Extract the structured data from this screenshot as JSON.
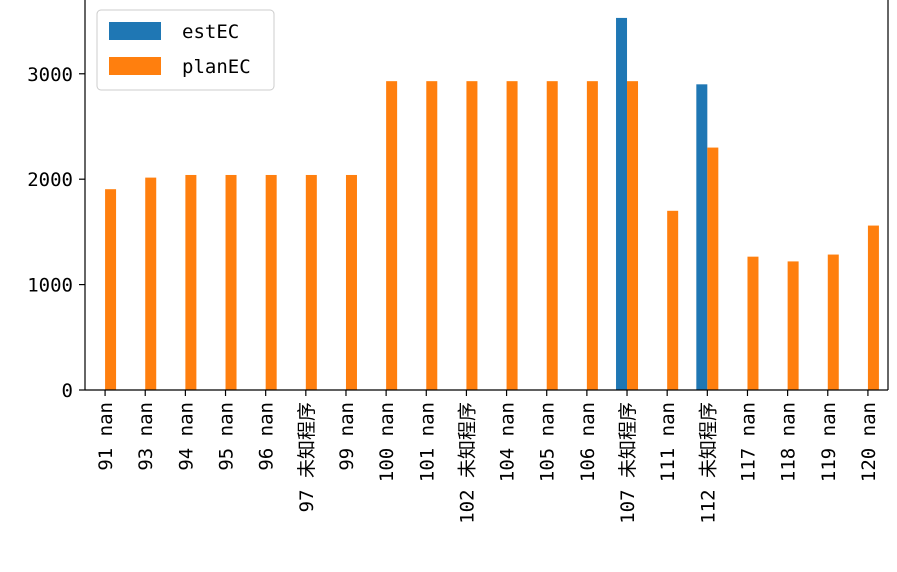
{
  "chart_data": {
    "type": "bar",
    "categories": [
      "91 nan",
      "93 nan",
      "94 nan",
      "95 nan",
      "96 nan",
      "97 未知程序",
      "99 nan",
      "100 nan",
      "101 nan",
      "102 未知程序",
      "104 nan",
      "105 nan",
      "106 nan",
      "107 未知程序",
      "111 nan",
      "112 未知程序",
      "117 nan",
      "118 nan",
      "119 nan",
      "120 nan"
    ],
    "series": [
      {
        "name": "estEC",
        "color": "#1f77b4",
        "values": [
          null,
          null,
          null,
          null,
          null,
          null,
          null,
          null,
          null,
          null,
          null,
          null,
          null,
          3530,
          null,
          2900,
          null,
          null,
          null,
          null
        ]
      },
      {
        "name": "planEC",
        "color": "#ff7f0e",
        "values": [
          1905,
          2015,
          2040,
          2040,
          2040,
          2040,
          2040,
          2930,
          2930,
          2930,
          2930,
          2930,
          2930,
          2930,
          1700,
          2300,
          1265,
          1220,
          1285,
          1560
        ]
      }
    ],
    "yticks": [
      0,
      1000,
      2000,
      3000
    ],
    "ylim": [
      0,
      3700
    ],
    "legend": "top-left",
    "grid": false
  }
}
